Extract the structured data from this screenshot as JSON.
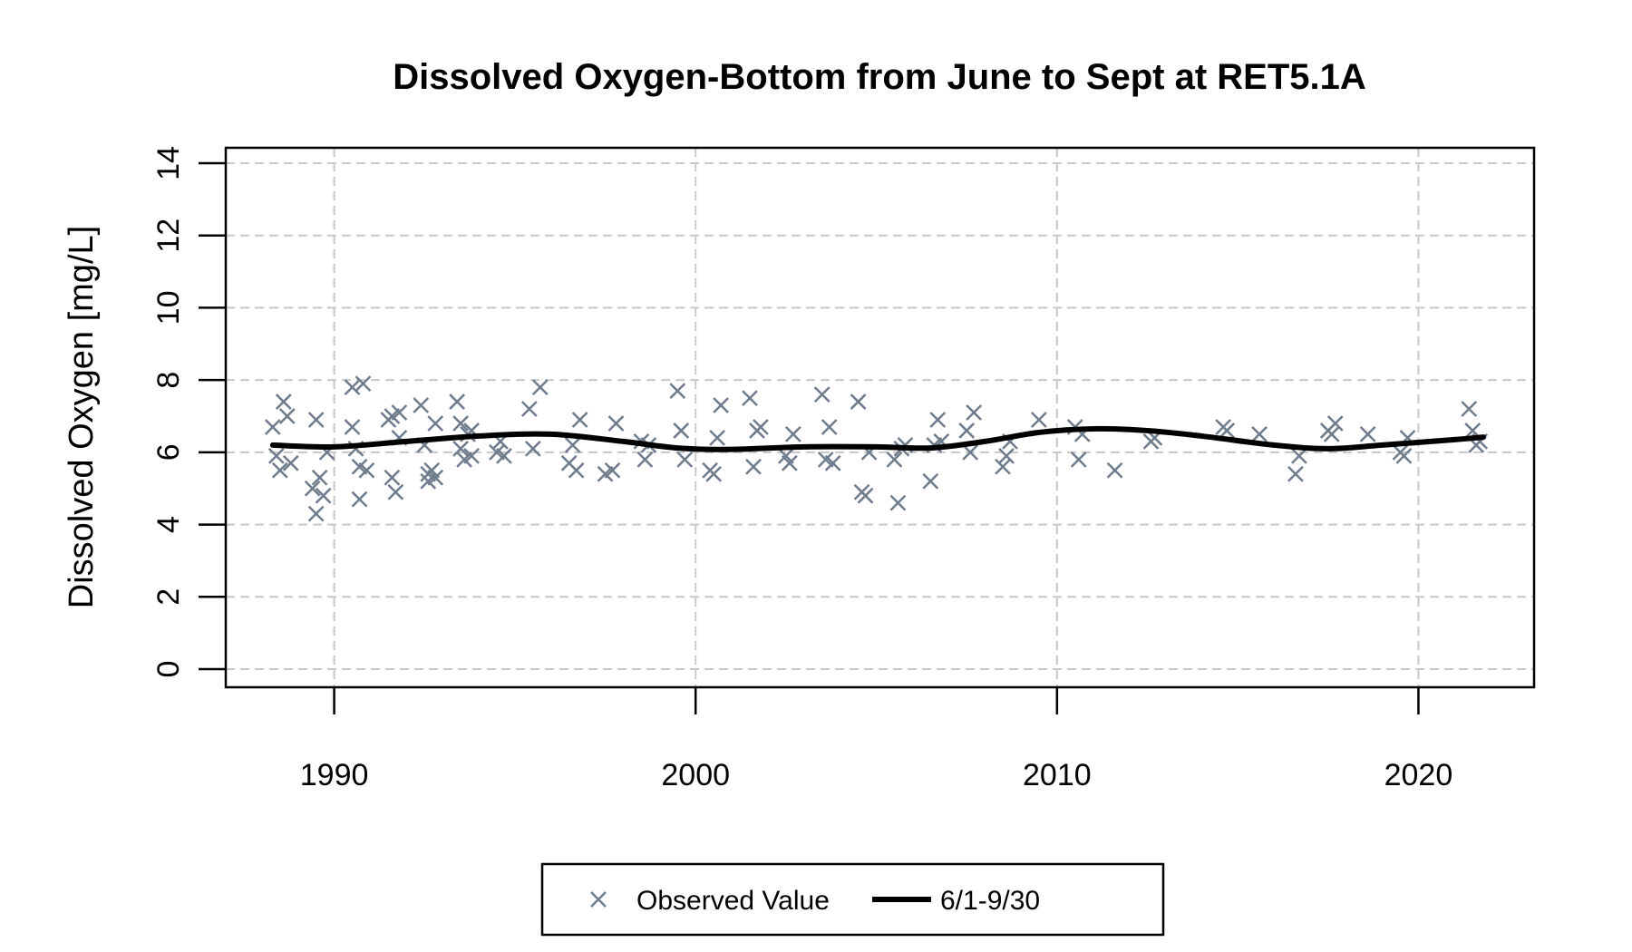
{
  "chart_data": {
    "type": "scatter",
    "title": "Dissolved Oxygen-Bottom from June to Sept at RET5.1A",
    "xlabel": "",
    "ylabel": "Dissolved Oxygen [mg/L]",
    "xlim": [
      1987,
      2023.2
    ],
    "ylim": [
      0,
      14
    ],
    "x_ticks": [
      1990,
      2000,
      2010,
      2020
    ],
    "y_ticks": [
      0,
      2,
      4,
      6,
      8,
      10,
      12,
      14
    ],
    "grid": true,
    "legend_position": "bottom",
    "legend": [
      {
        "label": "Observed Value",
        "marker": "x",
        "color": "#6e7c8c"
      },
      {
        "label": "6/1-9/30",
        "marker": "line",
        "color": "#000000"
      }
    ],
    "series": [
      {
        "name": "Observed Value",
        "kind": "scatter",
        "points": [
          [
            1988.3,
            6.7
          ],
          [
            1988.4,
            5.9
          ],
          [
            1988.5,
            5.5
          ],
          [
            1988.6,
            7.4
          ],
          [
            1988.7,
            7.0
          ],
          [
            1988.8,
            5.7
          ],
          [
            1989.4,
            5.0
          ],
          [
            1989.5,
            4.3
          ],
          [
            1989.5,
            6.9
          ],
          [
            1989.6,
            5.3
          ],
          [
            1989.7,
            4.8
          ],
          [
            1989.8,
            6.0
          ],
          [
            1990.5,
            7.8
          ],
          [
            1990.5,
            6.7
          ],
          [
            1990.6,
            6.1
          ],
          [
            1990.7,
            5.6
          ],
          [
            1990.7,
            4.7
          ],
          [
            1990.8,
            7.9
          ],
          [
            1990.9,
            5.5
          ],
          [
            1991.5,
            6.9
          ],
          [
            1991.6,
            7.0
          ],
          [
            1991.6,
            5.3
          ],
          [
            1991.7,
            4.9
          ],
          [
            1991.8,
            6.4
          ],
          [
            1991.8,
            7.1
          ],
          [
            1992.4,
            7.3
          ],
          [
            1992.5,
            6.2
          ],
          [
            1992.6,
            5.4
          ],
          [
            1992.6,
            5.2
          ],
          [
            1992.7,
            5.5
          ],
          [
            1992.8,
            6.8
          ],
          [
            1992.8,
            5.3
          ],
          [
            1993.4,
            7.4
          ],
          [
            1993.5,
            6.8
          ],
          [
            1993.5,
            6.1
          ],
          [
            1993.6,
            5.8
          ],
          [
            1993.7,
            6.5
          ],
          [
            1993.8,
            6.6
          ],
          [
            1993.8,
            5.9
          ],
          [
            1994.5,
            6.0
          ],
          [
            1994.6,
            6.3
          ],
          [
            1994.7,
            5.9
          ],
          [
            1995.4,
            7.2
          ],
          [
            1995.5,
            6.1
          ],
          [
            1995.7,
            7.8
          ],
          [
            1996.5,
            5.7
          ],
          [
            1996.6,
            6.2
          ],
          [
            1996.7,
            5.5
          ],
          [
            1996.8,
            6.9
          ],
          [
            1997.5,
            5.4
          ],
          [
            1997.7,
            5.5
          ],
          [
            1997.8,
            6.8
          ],
          [
            1998.5,
            6.3
          ],
          [
            1998.6,
            5.8
          ],
          [
            1998.7,
            6.2
          ],
          [
            1999.5,
            7.7
          ],
          [
            1999.6,
            6.6
          ],
          [
            1999.7,
            5.8
          ],
          [
            2000.4,
            5.5
          ],
          [
            2000.5,
            5.4
          ],
          [
            2000.6,
            6.4
          ],
          [
            2000.7,
            7.3
          ],
          [
            2001.5,
            7.5
          ],
          [
            2001.6,
            5.6
          ],
          [
            2001.7,
            6.6
          ],
          [
            2001.8,
            6.7
          ],
          [
            2002.5,
            5.9
          ],
          [
            2002.6,
            5.7
          ],
          [
            2002.7,
            6.5
          ],
          [
            2003.5,
            7.6
          ],
          [
            2003.6,
            5.8
          ],
          [
            2003.7,
            6.7
          ],
          [
            2003.8,
            5.7
          ],
          [
            2004.5,
            7.4
          ],
          [
            2004.6,
            4.9
          ],
          [
            2004.7,
            4.8
          ],
          [
            2004.8,
            6.0
          ],
          [
            2005.5,
            5.8
          ],
          [
            2005.6,
            4.6
          ],
          [
            2005.7,
            6.1
          ],
          [
            2005.8,
            6.2
          ],
          [
            2006.5,
            5.2
          ],
          [
            2006.6,
            6.2
          ],
          [
            2006.7,
            6.9
          ],
          [
            2006.8,
            6.3
          ],
          [
            2007.5,
            6.6
          ],
          [
            2007.6,
            6.0
          ],
          [
            2007.7,
            7.1
          ],
          [
            2008.5,
            5.6
          ],
          [
            2008.6,
            5.9
          ],
          [
            2008.7,
            6.3
          ],
          [
            2009.5,
            6.9
          ],
          [
            2010.5,
            6.7
          ],
          [
            2010.6,
            5.8
          ],
          [
            2010.7,
            6.5
          ],
          [
            2011.6,
            5.5
          ],
          [
            2012.6,
            6.3
          ],
          [
            2012.7,
            6.4
          ],
          [
            2014.6,
            6.7
          ],
          [
            2014.7,
            6.6
          ],
          [
            2015.6,
            6.5
          ],
          [
            2016.6,
            5.4
          ],
          [
            2016.7,
            5.9
          ],
          [
            2017.5,
            6.6
          ],
          [
            2017.6,
            6.5
          ],
          [
            2017.7,
            6.8
          ],
          [
            2018.6,
            6.5
          ],
          [
            2019.5,
            6.0
          ],
          [
            2019.6,
            5.9
          ],
          [
            2019.7,
            6.4
          ],
          [
            2021.4,
            7.2
          ],
          [
            2021.5,
            6.6
          ],
          [
            2021.6,
            6.2
          ],
          [
            2021.7,
            6.3
          ]
        ]
      },
      {
        "name": "6/1-9/30",
        "kind": "line",
        "points": [
          [
            1988.3,
            6.2
          ],
          [
            1990,
            6.15
          ],
          [
            1992,
            6.3
          ],
          [
            1994,
            6.45
          ],
          [
            1996,
            6.5
          ],
          [
            1998,
            6.3
          ],
          [
            1999.5,
            6.12
          ],
          [
            2001,
            6.08
          ],
          [
            2003,
            6.15
          ],
          [
            2005,
            6.15
          ],
          [
            2006.5,
            6.12
          ],
          [
            2008,
            6.3
          ],
          [
            2009.5,
            6.55
          ],
          [
            2011,
            6.65
          ],
          [
            2012.5,
            6.6
          ],
          [
            2014,
            6.45
          ],
          [
            2016,
            6.2
          ],
          [
            2017.5,
            6.1
          ],
          [
            2019,
            6.2
          ],
          [
            2021,
            6.35
          ],
          [
            2021.8,
            6.42
          ]
        ]
      }
    ]
  }
}
